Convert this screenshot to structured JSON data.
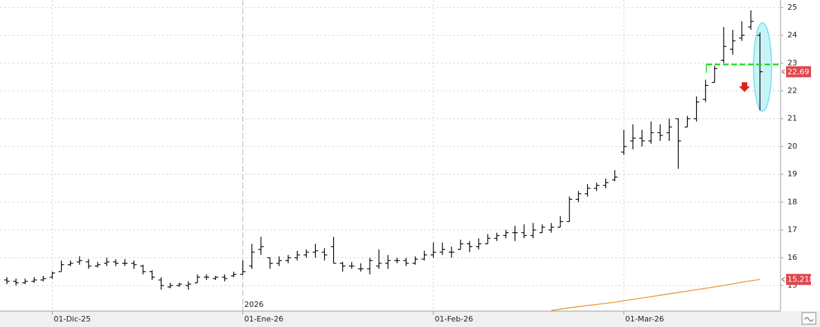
{
  "chart_data": {
    "type": "ohlc",
    "color": "#000000",
    "categories": [
      null,
      null,
      null,
      null,
      null,
      "01-Dic-25",
      null,
      null,
      null,
      null,
      null,
      null,
      null,
      null,
      null,
      null,
      null,
      null,
      null,
      null,
      null,
      null,
      null,
      null,
      null,
      null,
      "01-Ene-26",
      null,
      null,
      null,
      null,
      null,
      null,
      null,
      null,
      null,
      null,
      null,
      null,
      null,
      null,
      null,
      null,
      null,
      null,
      null,
      null,
      "01-Feb-26",
      null,
      null,
      null,
      null,
      null,
      null,
      null,
      null,
      null,
      null,
      null,
      null,
      null,
      null,
      null,
      null,
      null,
      null,
      null,
      null,
      "01-Mar-26",
      null,
      null,
      null,
      null,
      null,
      null,
      null,
      null,
      null,
      null,
      null,
      null,
      null,
      null,
      null
    ],
    "year_label": "2026",
    "open": [
      15.2,
      15.15,
      15.1,
      15.15,
      15.2,
      15.3,
      15.5,
      15.75,
      15.85,
      15.85,
      15.7,
      15.8,
      15.85,
      15.8,
      15.8,
      15.7,
      15.5,
      15.2,
      14.95,
      15.0,
      15.0,
      15.1,
      15.3,
      15.25,
      15.3,
      15.35,
      15.4,
      15.7,
      16.3,
      16.0,
      15.8,
      15.9,
      16.0,
      16.1,
      16.2,
      16.2,
      16.4,
      15.8,
      15.7,
      15.6,
      15.6,
      15.7,
      15.8,
      15.9,
      15.9,
      15.8,
      15.95,
      16.1,
      16.2,
      16.2,
      16.3,
      16.5,
      16.4,
      16.5,
      16.7,
      16.8,
      16.9,
      16.9,
      16.8,
      16.9,
      17.0,
      17.1,
      17.3,
      18.1,
      18.3,
      18.5,
      18.6,
      18.8,
      19.8,
      20.2,
      20.3,
      20.2,
      20.5,
      20.5,
      21.0,
      20.7,
      21.0,
      21.7,
      22.3,
      23.1,
      23.5,
      23.9,
      24.3,
      24.0
    ],
    "high": [
      15.3,
      15.25,
      15.25,
      15.3,
      15.35,
      15.5,
      15.9,
      15.9,
      16.05,
      15.95,
      15.85,
      16.0,
      15.95,
      15.95,
      15.9,
      15.75,
      15.55,
      15.3,
      15.1,
      15.1,
      15.15,
      15.4,
      15.4,
      15.35,
      15.4,
      15.5,
      15.9,
      16.5,
      16.75,
      16.0,
      16.05,
      16.1,
      16.25,
      16.3,
      16.5,
      16.35,
      16.75,
      15.85,
      15.85,
      15.8,
      16.0,
      16.3,
      16.1,
      16.0,
      16.0,
      16.05,
      16.25,
      16.55,
      16.55,
      16.4,
      16.65,
      16.6,
      16.7,
      16.85,
      16.9,
      17.0,
      17.15,
      17.2,
      17.25,
      17.2,
      17.25,
      17.5,
      18.2,
      18.4,
      18.65,
      18.7,
      18.85,
      19.15,
      20.6,
      20.8,
      20.6,
      20.9,
      20.8,
      21.0,
      21.0,
      21.1,
      21.8,
      22.4,
      22.9,
      24.3,
      24.2,
      24.5,
      24.9,
      24.1
    ],
    "low": [
      15.05,
      15.0,
      15.05,
      15.1,
      15.15,
      15.25,
      15.5,
      15.7,
      15.75,
      15.6,
      15.65,
      15.7,
      15.7,
      15.7,
      15.6,
      15.4,
      15.2,
      14.85,
      14.9,
      14.95,
      14.85,
      15.1,
      15.2,
      15.2,
      15.15,
      15.3,
      15.4,
      15.6,
      16.1,
      15.6,
      15.7,
      15.8,
      15.9,
      16.0,
      16.0,
      15.9,
      15.8,
      15.5,
      15.6,
      15.5,
      15.4,
      15.6,
      15.6,
      15.8,
      15.7,
      15.75,
      15.9,
      16.0,
      16.1,
      16.0,
      16.3,
      16.2,
      16.3,
      16.5,
      16.6,
      16.7,
      16.6,
      16.7,
      16.7,
      16.9,
      16.9,
      17.1,
      17.3,
      18.0,
      18.2,
      18.4,
      18.5,
      18.75,
      19.7,
      19.9,
      20.0,
      20.1,
      20.2,
      20.2,
      19.2,
      20.7,
      20.9,
      21.6,
      22.3,
      23.0,
      23.3,
      23.8,
      24.2,
      21.3
    ],
    "close": [
      15.15,
      15.1,
      15.15,
      15.2,
      15.25,
      15.45,
      15.75,
      15.8,
      15.9,
      15.7,
      15.75,
      15.85,
      15.8,
      15.8,
      15.75,
      15.5,
      15.3,
      15.0,
      15.0,
      15.05,
      15.05,
      15.3,
      15.3,
      15.3,
      15.25,
      15.4,
      15.5,
      16.2,
      16.4,
      15.8,
      15.9,
      16.0,
      16.1,
      16.2,
      16.25,
      16.1,
      15.8,
      15.7,
      15.7,
      15.6,
      15.9,
      15.8,
      15.9,
      15.9,
      15.8,
      15.95,
      16.1,
      16.2,
      16.3,
      16.2,
      16.5,
      16.4,
      16.5,
      16.7,
      16.8,
      16.9,
      16.9,
      16.8,
      17.0,
      17.1,
      17.1,
      17.3,
      18.1,
      18.3,
      18.5,
      18.6,
      18.7,
      18.9,
      20.0,
      20.3,
      20.2,
      20.5,
      20.4,
      20.7,
      20.2,
      21.0,
      21.6,
      22.2,
      22.8,
      23.6,
      23.8,
      24.0,
      24.5,
      22.69
    ],
    "moving_average": {
      "color": "#e8962e",
      "values": [
        null,
        null,
        null,
        null,
        null,
        null,
        null,
        null,
        null,
        null,
        null,
        null,
        null,
        null,
        null,
        null,
        null,
        null,
        null,
        null,
        null,
        null,
        null,
        null,
        null,
        null,
        null,
        null,
        null,
        null,
        null,
        null,
        null,
        null,
        null,
        null,
        null,
        null,
        null,
        null,
        null,
        null,
        null,
        null,
        null,
        null,
        null,
        null,
        null,
        null,
        null,
        null,
        null,
        null,
        null,
        null,
        null,
        null,
        null,
        null,
        14.1,
        14.15,
        14.2,
        14.24,
        14.28,
        14.32,
        14.36,
        14.4,
        14.45,
        14.5,
        14.55,
        14.6,
        14.65,
        14.7,
        14.75,
        14.8,
        14.85,
        14.9,
        14.95,
        15.0,
        15.06,
        15.12,
        15.17,
        15.218
      ]
    },
    "level_line": {
      "value": 22.95,
      "color": "#22dd22"
    },
    "price_markers": [
      {
        "value": 22.69,
        "label": "22,69",
        "color": "#e0474c"
      },
      {
        "value": 15.218,
        "label": "15,218",
        "color": "#e0474c"
      }
    ],
    "ylim": [
      14.08,
      25.27
    ],
    "yticks": [
      15,
      16,
      17,
      18,
      19,
      20,
      21,
      22,
      23,
      24,
      25
    ],
    "grid": true
  }
}
